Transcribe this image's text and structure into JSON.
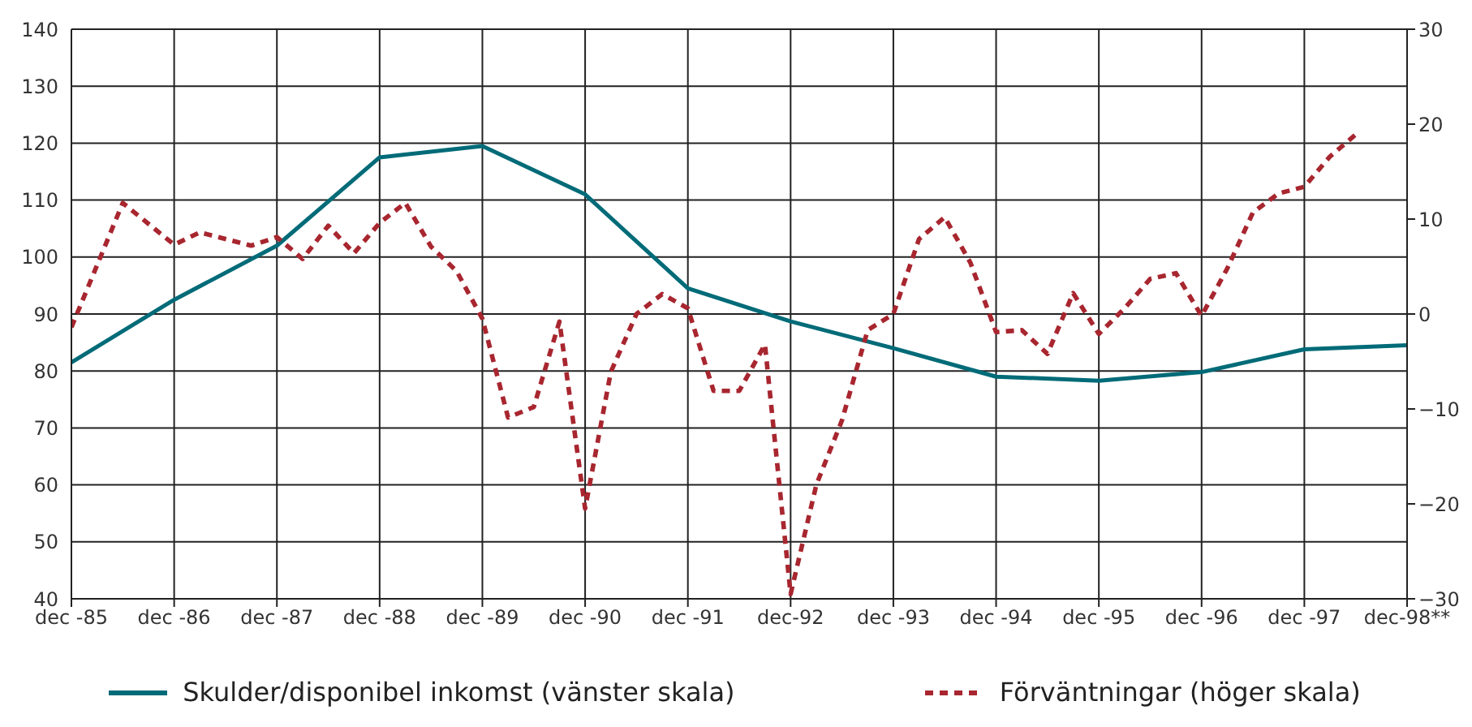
{
  "chart_data": {
    "type": "line",
    "x": [
      "1985-12",
      "1986-12",
      "1987-12",
      "1988-12",
      "1989-12",
      "1990-12",
      "1991-12",
      "1992-12",
      "1993-12",
      "1994-12",
      "1995-12",
      "1996-12",
      "1997-12",
      "1998-12"
    ],
    "series": [
      {
        "name": "Skulder/disponibel inkomst (vänster skala)",
        "color": "#006b78",
        "line_style": "solid",
        "values": [
          81.5,
          92.5,
          102,
          117.5,
          119.5,
          111,
          94.5,
          88.7,
          84,
          79,
          78.3,
          79.8,
          83.8,
          84.5
        ]
      },
      {
        "name": "Förväntningar (höger skala)",
        "color": "#a8262f",
        "line_style": "dashed",
        "axis": "y2",
        "x": [
          "1985-12",
          "1986-06",
          "1986-12",
          "1987-03",
          "1987-09",
          "1987-12",
          "1988-03",
          "1988-06",
          "1988-09",
          "1988-12",
          "1989-03",
          "1989-06",
          "1989-09",
          "1989-12",
          "1990-03",
          "1990-06",
          "1990-09",
          "1990-12",
          "1991-03",
          "1991-06",
          "1991-09",
          "1991-12",
          "1992-03",
          "1992-06",
          "1992-09",
          "1992-12",
          "1993-03",
          "1993-06",
          "1993-09",
          "1993-12",
          "1994-03",
          "1994-06",
          "1994-09",
          "1994-12",
          "1995-03",
          "1995-06",
          "1995-09",
          "1995-12",
          "1996-03",
          "1996-06",
          "1996-09",
          "1996-12",
          "1997-03",
          "1997-06",
          "1997-09",
          "1997-12",
          "1998-03",
          "1998-06"
        ],
        "values": [
          -1.4,
          11.7,
          7.3,
          8.6,
          7.2,
          8.1,
          5.8,
          9.3,
          6.4,
          9.6,
          11.7,
          7.1,
          4.5,
          -0.5,
          -10.9,
          -9.8,
          -0.8,
          -20.5,
          -6.1,
          0,
          2.1,
          0.6,
          -8.1,
          -8.1,
          -3.2,
          -29.5,
          -18,
          -11.2,
          -1.7,
          0,
          7.9,
          10.2,
          5.4,
          -1.9,
          -1.7,
          -4.2,
          2.2,
          -2.1,
          0.6,
          3.7,
          4.3,
          -0.2,
          4.8,
          10.7,
          12.7,
          13.4,
          16.6,
          18.9
        ]
      }
    ],
    "xlim": [
      "1985-12",
      "1998-12"
    ],
    "xticks": [
      {
        "value": "1985-12",
        "label": "dec -85"
      },
      {
        "value": "1986-12",
        "label": "dec -86"
      },
      {
        "value": "1987-12",
        "label": "dec -87"
      },
      {
        "value": "1988-12",
        "label": "dec -88"
      },
      {
        "value": "1989-12",
        "label": "dec -89"
      },
      {
        "value": "1990-12",
        "label": "dec -90"
      },
      {
        "value": "1991-12",
        "label": "dec -91"
      },
      {
        "value": "1992-12",
        "label": "dec-92"
      },
      {
        "value": "1993-12",
        "label": "dec -93"
      },
      {
        "value": "1994-12",
        "label": "dec -94"
      },
      {
        "value": "1995-12",
        "label": "dec -95"
      },
      {
        "value": "1996-12",
        "label": "dec -96"
      },
      {
        "value": "1997-12",
        "label": "dec -97"
      },
      {
        "value": "1998-12",
        "label": "dec-98**"
      }
    ],
    "ylim": [
      40,
      140
    ],
    "yticks": [
      40,
      50,
      60,
      70,
      80,
      90,
      100,
      110,
      120,
      130,
      140
    ],
    "y2lim": [
      -30,
      30
    ],
    "y2ticks": [
      {
        "value": -30,
        "label": "−30"
      },
      {
        "value": -20,
        "label": "−20"
      },
      {
        "value": -10,
        "label": "−10"
      },
      0,
      10,
      20,
      30
    ],
    "grid": true,
    "legend": "bottom",
    "marker": "none"
  }
}
